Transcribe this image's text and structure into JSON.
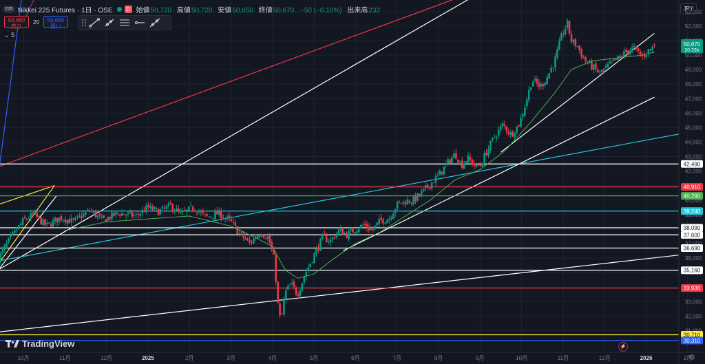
{
  "header": {
    "badge": "225",
    "title": "Nikkei 225 Futures · 1日 · OSE",
    "d_label": "D",
    "ohlc": [
      {
        "k": "始値",
        "v": "50,720"
      },
      {
        "k": "高値",
        "v": "50,720"
      },
      {
        "k": "安値",
        "v": "50,650"
      },
      {
        "k": "終値",
        "v": "50,670"
      },
      {
        "k": "",
        "v": "−50 (−0.10%)"
      },
      {
        "k": "出来高",
        "v": "232"
      }
    ]
  },
  "trade": {
    "sell_price": "50,660",
    "sell_label": "売り",
    "spread": "20",
    "buy_price": "50,680",
    "buy_label": "買い"
  },
  "indicator_toggle": "5",
  "currency": "JPY",
  "brand": "TradingView",
  "toolbar_icons": [
    "trendline-icon",
    "ray-icon",
    "parallel-channel-icon",
    "horizontal-ray-icon",
    "extended-line-icon"
  ],
  "colors": {
    "background": "#131722",
    "up": "#089981",
    "down": "#f23645",
    "white_line": "#ffffff",
    "red_line": "#f23645",
    "green_line": "#4caf50",
    "cyan_line": "#26c6da",
    "yellow_line": "#ffeb3b",
    "blue_line": "#2962ff",
    "ma": "#4caf50"
  },
  "chart_data": {
    "type": "candlestick",
    "ylim": [
      29500,
      53800
    ],
    "y_ticks": [
      31000,
      32000,
      33000,
      34000,
      35000,
      36000,
      37000,
      38000,
      39000,
      40000,
      41000,
      42000,
      43000,
      44000,
      45000,
      46000,
      47000,
      48000,
      49000,
      50000,
      51000,
      52000,
      53000
    ],
    "x_ticks": [
      {
        "label": "10月",
        "month": 0
      },
      {
        "label": "11月",
        "month": 1
      },
      {
        "label": "12月",
        "month": 2
      },
      {
        "label": "2025",
        "month": 3
      },
      {
        "label": "2月",
        "month": 4
      },
      {
        "label": "3月",
        "month": 5
      },
      {
        "label": "4月",
        "month": 6
      },
      {
        "label": "5月",
        "month": 7
      },
      {
        "label": "6月",
        "month": 8
      },
      {
        "label": "7月",
        "month": 9
      },
      {
        "label": "8月",
        "month": 10
      },
      {
        "label": "9月",
        "month": 11
      },
      {
        "label": "10月",
        "month": 12
      },
      {
        "label": "11月",
        "month": 13
      },
      {
        "label": "12月",
        "month": 14
      },
      {
        "label": "2026",
        "month": 15
      },
      {
        "label": "2月",
        "month": 16
      }
    ],
    "close_path": [
      [
        -0.6,
        36000
      ],
      [
        -0.35,
        37200
      ],
      [
        0.0,
        38600
      ],
      [
        0.25,
        39000
      ],
      [
        0.55,
        38200
      ],
      [
        0.9,
        38800
      ],
      [
        1.2,
        38500
      ],
      [
        1.6,
        39300
      ],
      [
        1.9,
        38600
      ],
      [
        2.3,
        39100
      ],
      [
        2.7,
        38900
      ],
      [
        3.0,
        39500
      ],
      [
        3.25,
        39200
      ],
      [
        3.55,
        39600
      ],
      [
        3.8,
        39000
      ],
      [
        4.1,
        39500
      ],
      [
        4.4,
        38800
      ],
      [
        4.7,
        39100
      ],
      [
        5.0,
        38500
      ],
      [
        5.2,
        37700
      ],
      [
        5.45,
        37000
      ],
      [
        5.7,
        37800
      ],
      [
        5.9,
        37400
      ],
      [
        6.05,
        35800
      ],
      [
        6.12,
        33000
      ],
      [
        6.2,
        31500
      ],
      [
        6.3,
        33600
      ],
      [
        6.45,
        34200
      ],
      [
        6.6,
        33500
      ],
      [
        6.8,
        35000
      ],
      [
        7.0,
        36200
      ],
      [
        7.2,
        37400
      ],
      [
        7.4,
        37200
      ],
      [
        7.6,
        37900
      ],
      [
        7.8,
        37600
      ],
      [
        8.0,
        38000
      ],
      [
        8.2,
        38300
      ],
      [
        8.4,
        37900
      ],
      [
        8.6,
        38600
      ],
      [
        8.8,
        38700
      ],
      [
        9.0,
        39700
      ],
      [
        9.2,
        39900
      ],
      [
        9.4,
        40000
      ],
      [
        9.6,
        40500
      ],
      [
        9.8,
        41100
      ],
      [
        10.0,
        41700
      ],
      [
        10.2,
        42500
      ],
      [
        10.4,
        43200
      ],
      [
        10.55,
        42400
      ],
      [
        10.7,
        42900
      ],
      [
        10.9,
        42300
      ],
      [
        11.0,
        42400
      ],
      [
        11.15,
        43300
      ],
      [
        11.35,
        44400
      ],
      [
        11.55,
        45200
      ],
      [
        11.75,
        44500
      ],
      [
        11.95,
        45300
      ],
      [
        12.1,
        46700
      ],
      [
        12.25,
        48300
      ],
      [
        12.45,
        47800
      ],
      [
        12.6,
        48400
      ],
      [
        12.8,
        49600
      ],
      [
        12.95,
        51200
      ],
      [
        13.1,
        52200
      ],
      [
        13.2,
        51000
      ],
      [
        13.35,
        50600
      ],
      [
        13.5,
        49700
      ],
      [
        13.7,
        49200
      ],
      [
        13.9,
        48700
      ],
      [
        14.1,
        49300
      ],
      [
        14.3,
        49700
      ],
      [
        14.5,
        50200
      ],
      [
        14.7,
        50500
      ],
      [
        14.9,
        49900
      ],
      [
        15.05,
        50300
      ],
      [
        15.2,
        50670
      ]
    ],
    "ma_path": [
      [
        1.0,
        37900
      ],
      [
        2.0,
        38500
      ],
      [
        3.0,
        38700
      ],
      [
        4.0,
        38900
      ],
      [
        5.0,
        38200
      ],
      [
        5.6,
        37400
      ],
      [
        6.0,
        36800
      ],
      [
        6.3,
        35200
      ],
      [
        6.6,
        34600
      ],
      [
        7.0,
        34900
      ],
      [
        7.4,
        35800
      ],
      [
        8.0,
        37000
      ],
      [
        8.6,
        37800
      ],
      [
        9.2,
        38900
      ],
      [
        9.8,
        40000
      ],
      [
        10.4,
        41400
      ],
      [
        11.0,
        42100
      ],
      [
        11.6,
        43400
      ],
      [
        12.2,
        45300
      ],
      [
        12.8,
        47400
      ],
      [
        13.2,
        49000
      ],
      [
        13.7,
        49600
      ],
      [
        14.3,
        49800
      ],
      [
        14.9,
        50000
      ],
      [
        15.2,
        50200
      ]
    ],
    "horizontal_levels": [
      {
        "value": 42490,
        "label": "42,490",
        "color": "#ffffff"
      },
      {
        "value": 40910,
        "label": "40,910",
        "color": "#f23645"
      },
      {
        "value": 40290,
        "label": "40,290",
        "color": "#4caf50"
      },
      {
        "value": 39240,
        "label": "39,240",
        "color": "#26c6da"
      },
      {
        "value": 38090,
        "label": "38,090",
        "color": "#ffffff"
      },
      {
        "value": 37600,
        "label": "37,600",
        "color": "#ffffff"
      },
      {
        "value": 36690,
        "label": "36,690",
        "color": "#ffffff"
      },
      {
        "value": 35160,
        "label": "35,160",
        "color": "#ffffff"
      },
      {
        "value": 33930,
        "label": "33,930",
        "color": "#f23645"
      },
      {
        "value": 30710,
        "label": "30,710",
        "color": "#ffeb3b"
      },
      {
        "value": 30310,
        "label": "30,310",
        "color": "#2962ff"
      }
    ],
    "trendlines": [
      {
        "color": "#ffffff",
        "from": [
          -0.6,
          35200
        ],
        "to": [
          11.0,
          54300
        ]
      },
      {
        "color": "#ffffff",
        "from": [
          -0.6,
          35200
        ],
        "to": [
          0.8,
          40300
        ]
      },
      {
        "color": "#ffffff",
        "from": [
          7.7,
          36500
        ],
        "to": [
          15.2,
          47100
        ]
      },
      {
        "color": "#ffffff",
        "from": [
          -0.6,
          30900
        ],
        "to": [
          17.0,
          36600
        ]
      },
      {
        "color": "#ffffff",
        "from": [
          11.5,
          43300
        ],
        "to": [
          15.2,
          51500
        ]
      },
      {
        "color": "#f23645",
        "from": [
          -0.6,
          42300
        ],
        "to": [
          10.8,
          54300
        ]
      },
      {
        "color": "#26c6da",
        "from": [
          -0.6,
          35800
        ],
        "to": [
          17.0,
          45200
        ]
      },
      {
        "color": "#ffeb3b",
        "from": [
          -0.6,
          39700
        ],
        "to": [
          0.75,
          41000
        ]
      },
      {
        "color": "#ffeb3b",
        "from": [
          -0.6,
          35600
        ],
        "to": [
          0.75,
          41000
        ]
      },
      {
        "color": "#2962ff",
        "from": [
          -0.6,
          41800
        ],
        "to": [
          -0.05,
          53800
        ]
      },
      {
        "color": "#9c27b0",
        "from": [
          0.05,
          52600
        ],
        "to": [
          0.25,
          53800
        ]
      }
    ],
    "last_price": {
      "value": 50670,
      "label": "50,670",
      "countdown": "20 23h",
      "color": "#089981"
    }
  }
}
